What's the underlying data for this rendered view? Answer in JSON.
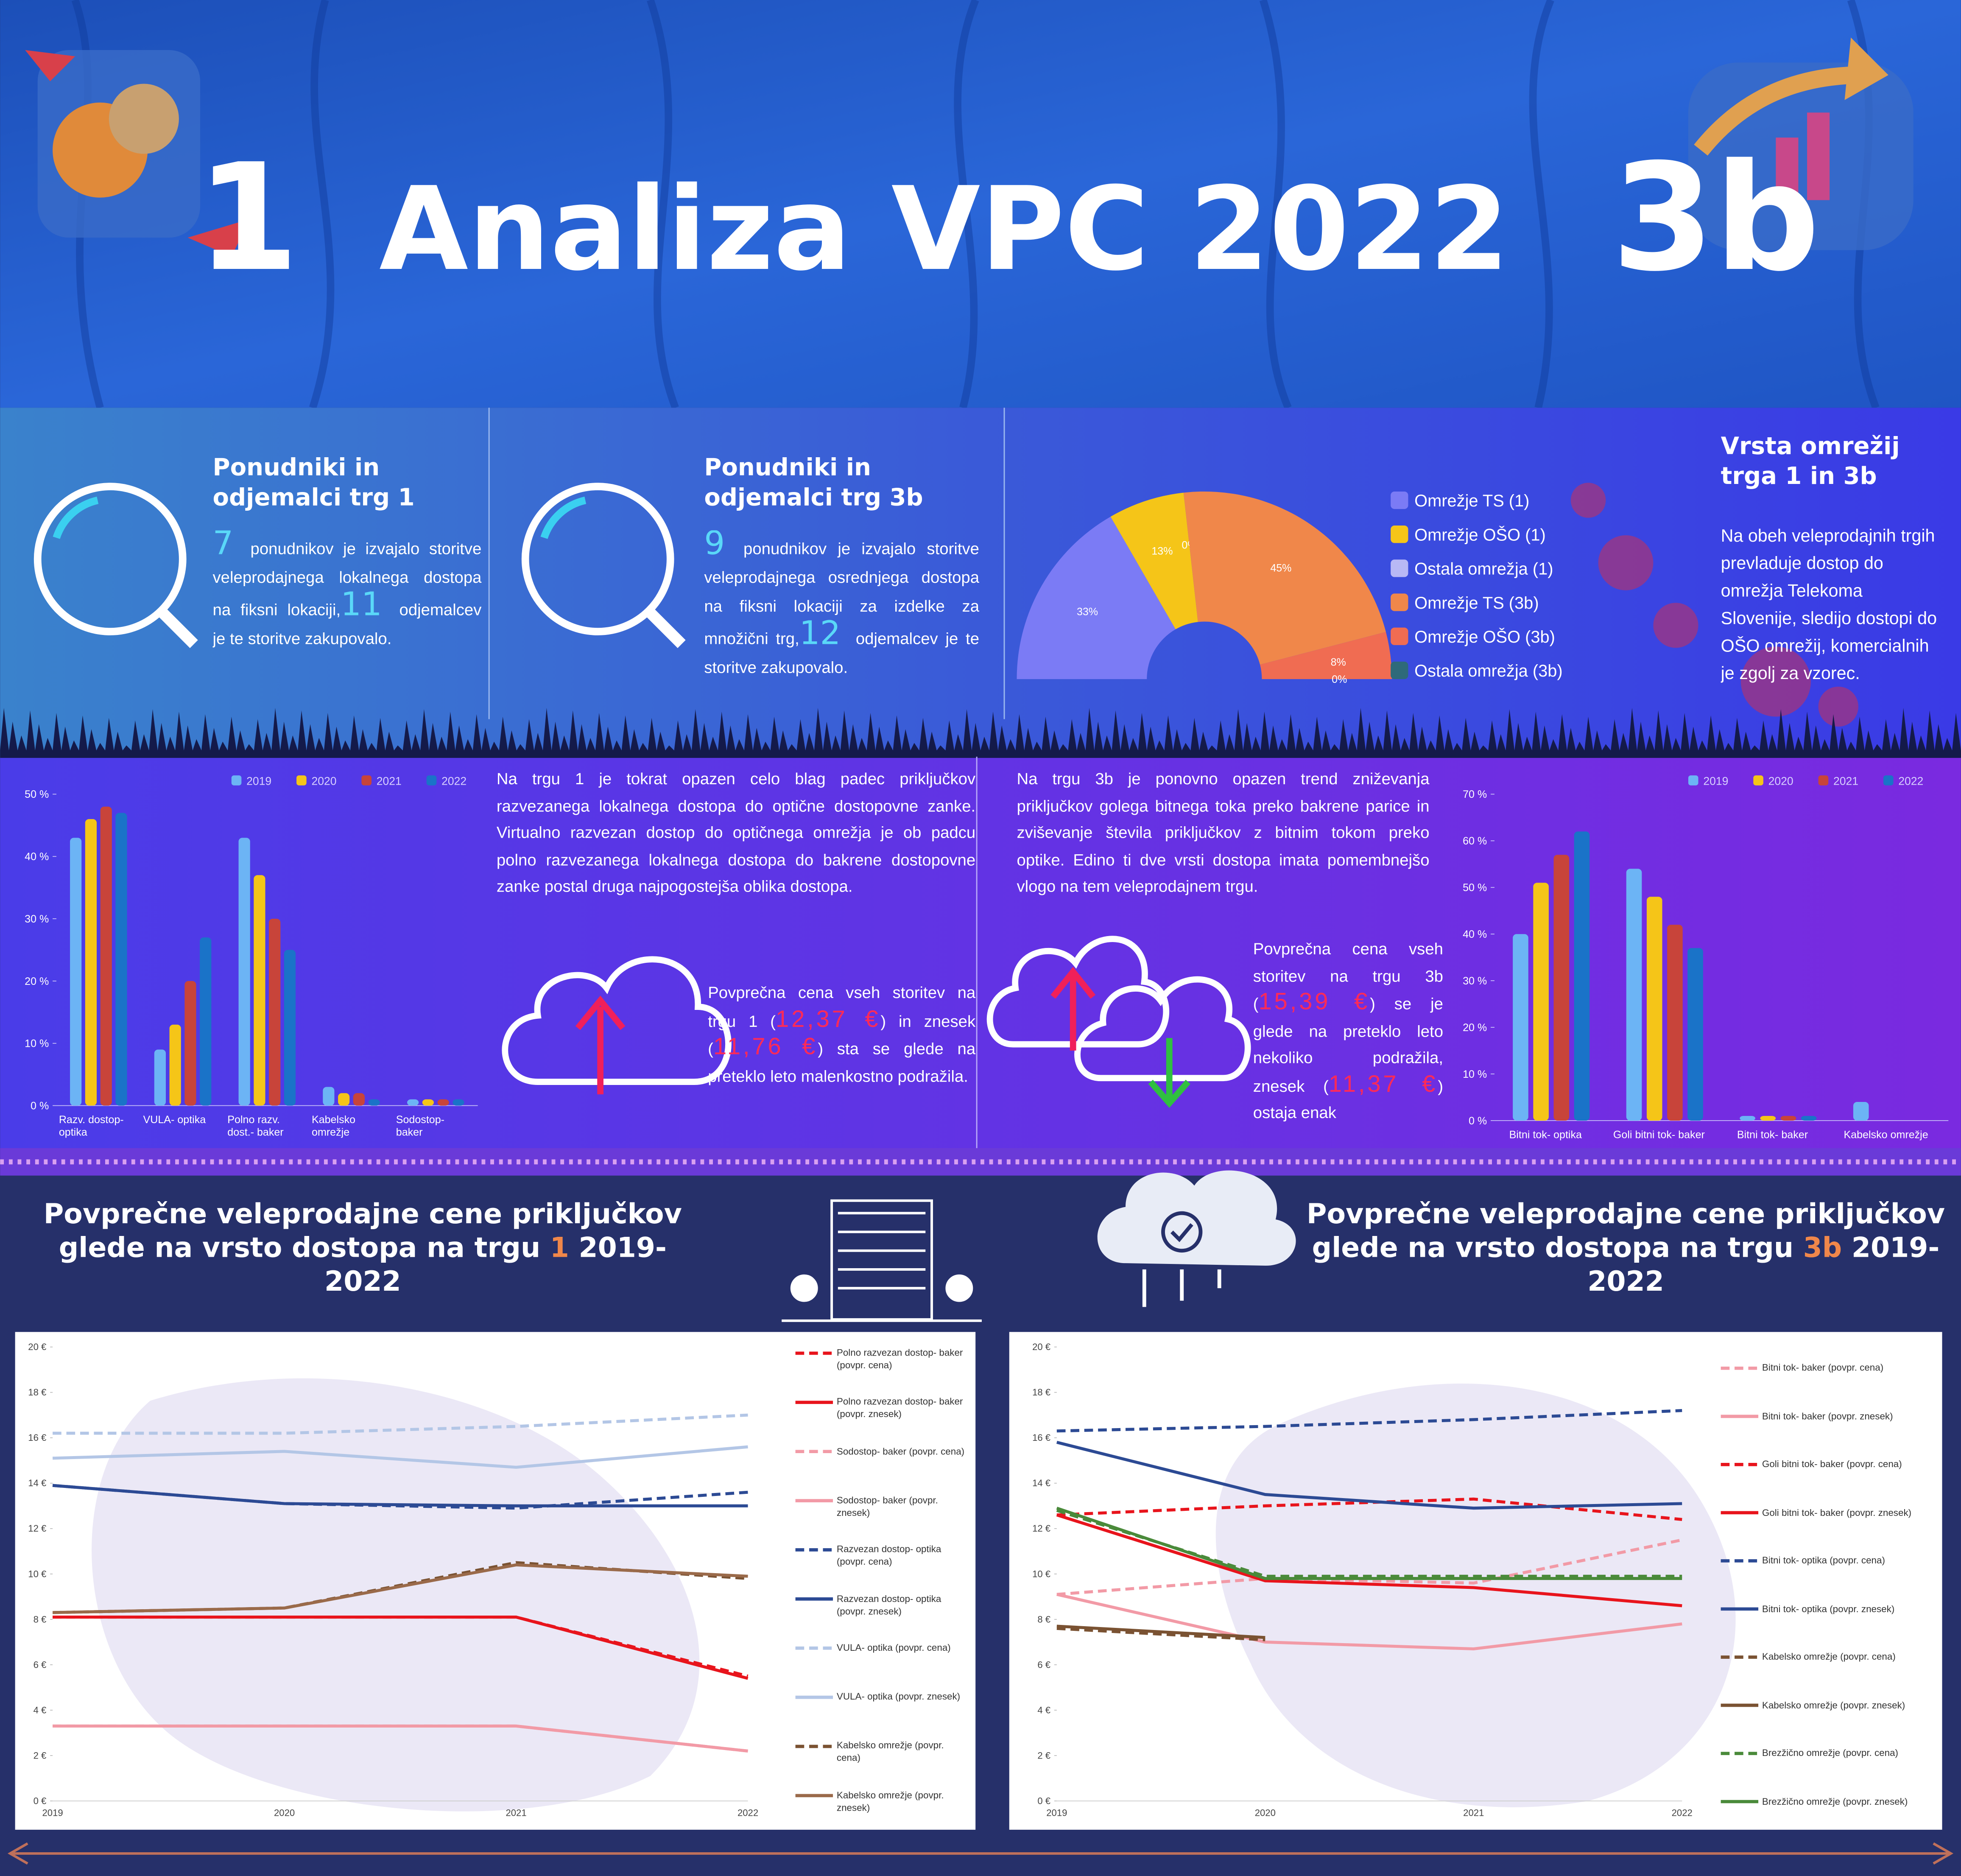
{
  "header": {
    "left": "1",
    "title": "Analiza VPC 2022",
    "right": "3b"
  },
  "panels": [
    {
      "title": "Ponudniki in odjemalci trg 1",
      "body": [
        "7",
        "ponudnikov je izvajalo storitve veleprodajnega lokalnega dostopa na fiksni lokaciji,",
        "11",
        "odjemalcev je te storitve zakupovalo."
      ]
    },
    {
      "title": "Ponudniki in odjemalci trg 3b",
      "body": [
        "9",
        "ponudnikov je izvajalo storitve veleprodajnega osrednjega dostopa na fiksni lokaciji za izdelke za množični trg,",
        "12",
        "odjemalcev je te storitve zakupovalo."
      ]
    },
    {
      "title": "Vrsta omrežij trga 1 in 3b",
      "body": [
        "Na obeh veleprodajnih trgih prevladuje dostop do omrežja Telekoma Slovenije, sledijo dostopi do OŠO omrežij, komercialnih je zgolj za vzorec."
      ]
    }
  ],
  "notes": [
    {
      "body": [
        "Na trgu 1 je tokrat opazen celo blag padec priključkov razvezanega lokalnega dostopa do optične dostopovne zanke. Virtualno razvezan dostop do optičnega omrežja je ob padcu polno razvezanega lokalnega dostopa do bakrene dostopovne zanke postal druga najpogostejša oblika dostopa."
      ]
    },
    {
      "body": [
        "Povprečna cena vseh storitev na trgu 1 (",
        "12,37 €",
        ") in znesek (",
        "11,76 €",
        ") sta se glede na preteklo leto malenkostno podražila."
      ]
    },
    {
      "body": [
        "Na trgu 3b je ponovno opazen trend zniževanja priključkov golega bitnega toka preko bakrene parice in zviševanje števila priključkov z bitnim tokom preko optike. Edino ti dve vrsti dostopa imata pomembnejšo vlogo na tem veleprodajnem trgu."
      ]
    },
    {
      "body": [
        "Povprečna cena vseh storitev na trgu 3b (",
        "15,39 €",
        ") se je glede na preteklo leto nekoliko podražila, znesek (",
        "11,37 €",
        ") ostaja enak"
      ]
    }
  ],
  "chart_data": [
    {
      "type": "pie",
      "half": true,
      "categories": [
        "Omrežje TS (1)",
        "Omrežje OŠO (1)",
        "Ostala omrežja (1)",
        "Omrežje TS (3b)",
        "Omrežje OŠO (3b)",
        "Ostala omrežja (3b)"
      ],
      "colors": [
        "#7b7bf5",
        "#f5c518",
        "#b8b8f5",
        "#f0874a",
        "#f06c52",
        "#2e6a7a"
      ],
      "values": [
        33,
        13,
        0,
        45,
        8,
        0
      ],
      "value_labels": [
        "33%",
        "13%",
        "0%",
        "45%",
        "8%",
        "0%"
      ]
    },
    {
      "type": "bar",
      "categories": [
        "Razv. dostop- optika",
        "VULA- optika",
        "Polno razv. dost.- baker",
        "Kabelsko omrežje",
        "Sodostop- baker"
      ],
      "series": [
        {
          "name": "2019",
          "color": "#6cb4f5",
          "values": [
            43,
            9,
            43,
            3,
            1
          ]
        },
        {
          "name": "2020",
          "color": "#f5c518",
          "values": [
            46,
            13,
            37,
            2,
            1
          ]
        },
        {
          "name": "2021",
          "color": "#c8443a",
          "values": [
            48,
            20,
            30,
            2,
            1
          ]
        },
        {
          "name": "2022",
          "color": "#1a73c8",
          "values": [
            47,
            27,
            25,
            1,
            1
          ]
        }
      ],
      "ylim": [
        0,
        50
      ],
      "yticks": [
        {
          "value": 0,
          "label": "0 %"
        },
        {
          "value": 10,
          "label": "10 %"
        },
        {
          "value": 20,
          "label": "20 %"
        },
        {
          "value": 30,
          "label": "30 %"
        },
        {
          "value": 40,
          "label": "40 %"
        },
        {
          "value": 50,
          "label": "50 %"
        }
      ]
    },
    {
      "type": "bar",
      "categories": [
        "Bitni tok- optika",
        "Goli bitni tok- baker",
        "Bitni tok- baker",
        "Kabelsko omrežje"
      ],
      "series": [
        {
          "name": "2019",
          "color": "#6cb4f5",
          "values": [
            40,
            54,
            1,
            4
          ]
        },
        {
          "name": "2020",
          "color": "#f5c518",
          "values": [
            51,
            48,
            1,
            0
          ]
        },
        {
          "name": "2021",
          "color": "#c8443a",
          "values": [
            57,
            42,
            1,
            0
          ]
        },
        {
          "name": "2022",
          "color": "#1a73c8",
          "values": [
            62,
            37,
            1,
            0
          ]
        }
      ],
      "ylim": [
        0,
        70
      ],
      "yticks": [
        {
          "value": 0,
          "label": "0 %"
        },
        {
          "value": 10,
          "label": "10 %"
        },
        {
          "value": 20,
          "label": "20 %"
        },
        {
          "value": 30,
          "label": "30 %"
        },
        {
          "value": 40,
          "label": "40 %"
        },
        {
          "value": 50,
          "label": "50 %"
        },
        {
          "value": 60,
          "label": "60 %"
        },
        {
          "value": 70,
          "label": "70 %"
        }
      ]
    },
    {
      "type": "line",
      "title": [
        "Povprečne veleprodajne cene priključkov glede na vrsto dostopa na trgu ",
        "1",
        " 2019-2022"
      ],
      "categories": [
        "2019",
        "2020",
        "2021",
        "2022"
      ],
      "series": [
        {
          "name": "Polno razvezan dostop- baker (povpr. cena)",
          "color": "#e8141c",
          "dashed": true,
          "values": [
            8.1,
            8.1,
            8.1,
            5.5
          ]
        },
        {
          "name": "Polno razvezan dostop- baker (povpr. znesek)",
          "color": "#e8141c",
          "dashed": false,
          "values": [
            8.1,
            8.1,
            8.1,
            5.4
          ]
        },
        {
          "name": "Sodostop- baker (povpr. cena)",
          "color": "#f29aa6",
          "dashed": true,
          "values": [
            3.3,
            3.3,
            3.3,
            2.2
          ]
        },
        {
          "name": "Sodostop- baker (povpr. znesek)",
          "color": "#f29aa6",
          "dashed": false,
          "values": [
            3.3,
            3.3,
            3.3,
            2.2
          ]
        },
        {
          "name": "Razvezan dostop- optika (povpr. cena)",
          "color": "#2c4a94",
          "dashed": true,
          "values": [
            13.9,
            13.1,
            12.9,
            13.6
          ]
        },
        {
          "name": "Razvezan dostop- optika (povpr. znesek)",
          "color": "#2c4a94",
          "dashed": false,
          "values": [
            13.9,
            13.1,
            13.0,
            13.0
          ]
        },
        {
          "name": "VULA- optika (povpr. cena)",
          "color": "#b3c6e6",
          "dashed": true,
          "values": [
            16.2,
            16.2,
            16.5,
            17.0
          ]
        },
        {
          "name": "VULA- optika (povpr. znesek)",
          "color": "#b3c6e6",
          "dashed": false,
          "values": [
            15.1,
            15.4,
            14.7,
            15.6
          ]
        },
        {
          "name": "Kabelsko omrežje (povpr. cena)",
          "color": "#7a5232",
          "dashed": true,
          "values": [
            8.3,
            8.5,
            10.5,
            9.8
          ]
        },
        {
          "name": "Kabelsko omrežje (povpr. znesek)",
          "color": "#9a6a4a",
          "dashed": false,
          "values": [
            8.3,
            8.5,
            10.4,
            9.9
          ]
        }
      ],
      "ylim": [
        0,
        20
      ],
      "yticks": [
        {
          "value": 0,
          "label": "0 €"
        },
        {
          "value": 2,
          "label": "2 €"
        },
        {
          "value": 4,
          "label": "4 €"
        },
        {
          "value": 6,
          "label": "6 €"
        },
        {
          "value": 8,
          "label": "8 €"
        },
        {
          "value": 10,
          "label": "10 €"
        },
        {
          "value": 12,
          "label": "12 €"
        },
        {
          "value": 14,
          "label": "14 €"
        },
        {
          "value": 16,
          "label": "16 €"
        },
        {
          "value": 18,
          "label": "18 €"
        },
        {
          "value": 20,
          "label": "20 €"
        }
      ]
    },
    {
      "type": "line",
      "title": [
        "Povprečne veleprodajne cene priključkov glede na vrsto dostopa na trgu ",
        "3b",
        " 2019-2022"
      ],
      "categories": [
        "2019",
        "2020",
        "2021",
        "2022"
      ],
      "series": [
        {
          "name": "Bitni tok- baker (povpr. cena)",
          "color": "#f29aa6",
          "dashed": true,
          "values": [
            9.1,
            9.8,
            9.6,
            11.5
          ]
        },
        {
          "name": "Bitni tok- baker (povpr. znesek)",
          "color": "#f29aa6",
          "dashed": false,
          "values": [
            9.1,
            7.0,
            6.7,
            7.8
          ]
        },
        {
          "name": "Goli bitni tok- baker (povpr. cena)",
          "color": "#e8141c",
          "dashed": true,
          "values": [
            12.6,
            13.0,
            13.3,
            12.4
          ]
        },
        {
          "name": "Goli bitni tok- baker (povpr. znesek)",
          "color": "#e8141c",
          "dashed": false,
          "values": [
            12.6,
            9.7,
            9.4,
            8.6
          ]
        },
        {
          "name": "Bitni tok- optika (povpr. cena)",
          "color": "#2c4a94",
          "dashed": true,
          "values": [
            16.3,
            16.5,
            16.8,
            17.2
          ]
        },
        {
          "name": "Bitni tok- optika (povpr. znesek)",
          "color": "#2c4a94",
          "dashed": false,
          "values": [
            15.8,
            13.5,
            12.9,
            13.1
          ]
        },
        {
          "name": "Kabelsko omrežje (povpr. cena)",
          "color": "#7a5232",
          "dashed": true,
          "values": [
            7.6,
            7.1,
            null,
            null
          ]
        },
        {
          "name": "Kabelsko omrežje (povpr. znesek)",
          "color": "#7a5232",
          "dashed": false,
          "values": [
            7.7,
            7.2,
            null,
            null
          ]
        },
        {
          "name": "Brezžično omrežje (povpr. cena)",
          "color": "#4a8a3a",
          "dashed": true,
          "values": [
            12.8,
            9.9,
            9.9,
            9.9
          ]
        },
        {
          "name": "Brezžično omrežje (povpr. znesek)",
          "color": "#4a8a3a",
          "dashed": false,
          "values": [
            12.9,
            9.8,
            9.8,
            9.8
          ]
        }
      ],
      "ylim": [
        0,
        20
      ],
      "yticks": [
        {
          "value": 0,
          "label": "0 €"
        },
        {
          "value": 2,
          "label": "2 €"
        },
        {
          "value": 4,
          "label": "4 €"
        },
        {
          "value": 6,
          "label": "6 €"
        },
        {
          "value": 8,
          "label": "8 €"
        },
        {
          "value": 10,
          "label": "10 €"
        },
        {
          "value": 12,
          "label": "12 €"
        },
        {
          "value": 14,
          "label": "14 €"
        },
        {
          "value": 16,
          "label": "16 €"
        },
        {
          "value": 18,
          "label": "18 €"
        },
        {
          "value": 20,
          "label": "20 €"
        }
      ]
    }
  ]
}
